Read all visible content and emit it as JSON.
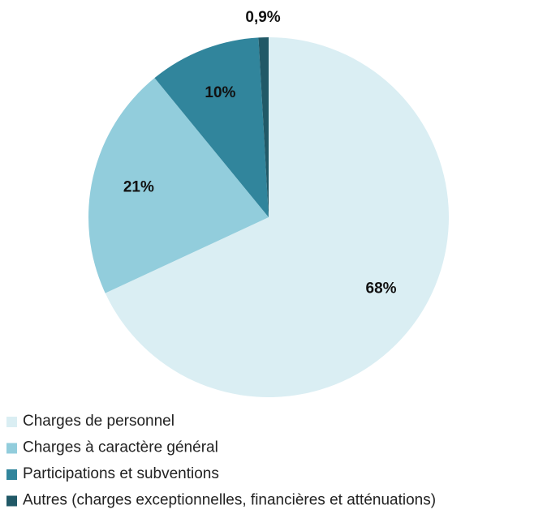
{
  "chart_data": {
    "type": "pie",
    "categories": [
      "Charges de personnel",
      "Charges à caractère général",
      "Participations et subventions",
      "Autres (charges exceptionnelles, financières et atténuations)"
    ],
    "values": [
      68,
      21,
      10,
      0.9
    ],
    "value_labels": [
      "68%",
      "21%",
      "10%",
      "0,9%"
    ],
    "colors": [
      "#daeef3",
      "#92cddc",
      "#31859c",
      "#215967"
    ],
    "legend": "bottom"
  }
}
